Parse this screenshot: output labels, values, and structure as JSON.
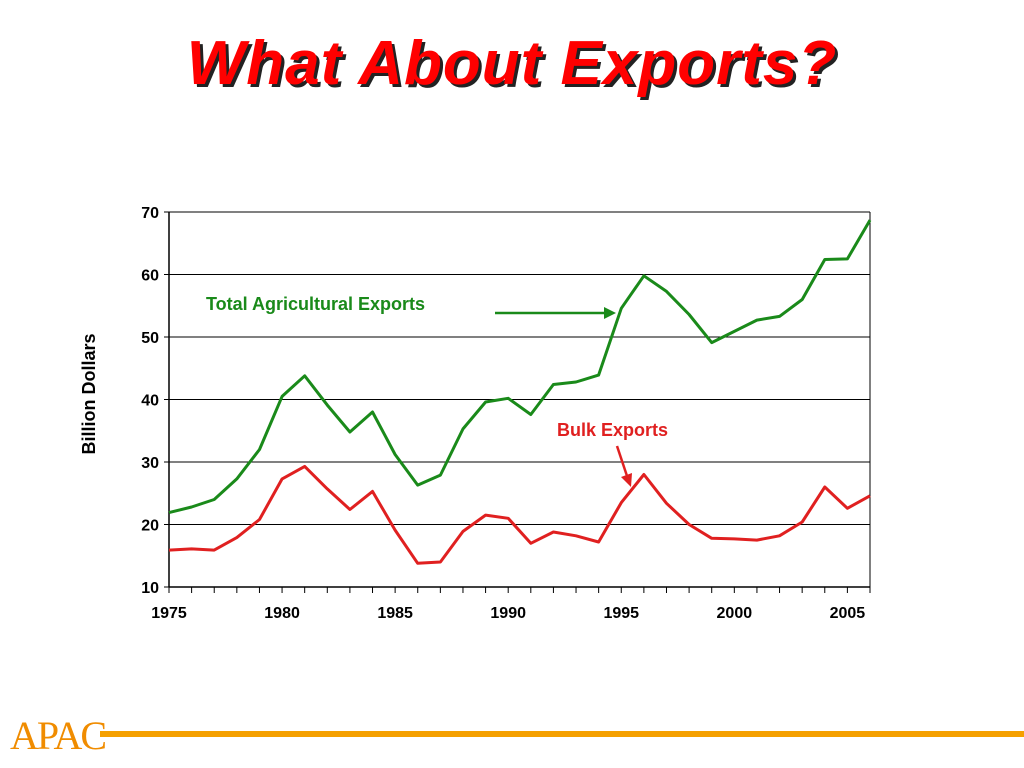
{
  "slide": {
    "title": "What About Exports?",
    "logo_text": "APAC"
  },
  "colors": {
    "title": "#ff0000",
    "total_series": "#1a8a1a",
    "bulk_series": "#e02020",
    "logo": "#f08c00"
  },
  "chart_data": {
    "type": "line",
    "title": "",
    "xlabel": "",
    "ylabel": "Billion Dollars",
    "xlim": [
      1975,
      2006
    ],
    "ylim": [
      10,
      70
    ],
    "yticks": [
      10,
      20,
      30,
      40,
      50,
      60,
      70
    ],
    "xtick_labels": [
      1975,
      1980,
      1985,
      1990,
      1995,
      2000,
      2005
    ],
    "grid": "horizontal",
    "x": [
      1975,
      1976,
      1977,
      1978,
      1979,
      1980,
      1981,
      1982,
      1983,
      1984,
      1985,
      1986,
      1987,
      1988,
      1989,
      1990,
      1991,
      1992,
      1993,
      1994,
      1995,
      1996,
      1997,
      1998,
      1999,
      2000,
      2001,
      2002,
      2003,
      2004,
      2005,
      2006
    ],
    "series": [
      {
        "name": "Total Agricultural Exports",
        "color": "#1a8a1a",
        "values": [
          21.9,
          22.8,
          24.0,
          27.3,
          32.0,
          40.5,
          43.8,
          39.1,
          34.8,
          38.0,
          31.2,
          26.3,
          27.9,
          35.3,
          39.6,
          40.2,
          37.6,
          42.4,
          42.8,
          43.9,
          54.6,
          59.8,
          57.3,
          53.6,
          49.1,
          50.9,
          52.7,
          53.3,
          56.0,
          62.4,
          62.5,
          68.7
        ]
      },
      {
        "name": "Bulk Exports",
        "color": "#e02020",
        "values": [
          15.9,
          16.1,
          15.9,
          17.9,
          20.8,
          27.3,
          29.3,
          25.7,
          22.4,
          25.3,
          19.1,
          13.8,
          14.0,
          18.9,
          21.5,
          21.0,
          17.0,
          18.8,
          18.2,
          17.2,
          23.5,
          28.0,
          23.4,
          20.0,
          17.8,
          17.7,
          17.5,
          18.2,
          20.4,
          26.0,
          22.6,
          24.6
        ]
      }
    ],
    "annotations": [
      {
        "text": "Total Agricultural Exports",
        "color": "#1a8a1a",
        "points_to_year": 1995
      },
      {
        "text": "Bulk Exports",
        "color": "#e02020",
        "points_to_year": 1996
      }
    ]
  }
}
